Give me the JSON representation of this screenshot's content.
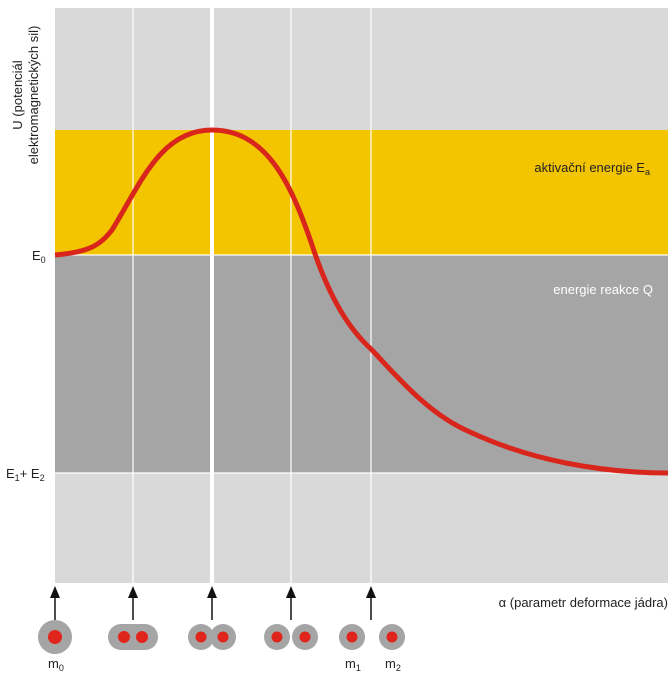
{
  "y_axis_label": [
    "U (potenciál",
    "elektromagnetických sil)"
  ],
  "x_axis_label": "α (parametr deformace jádra)",
  "level_e0": {
    "base": "E",
    "sub": "0"
  },
  "level_e1_e2": {
    "base1": "E",
    "sub1": "1",
    "base2": "+ E",
    "sub2": "2"
  },
  "band_activation": {
    "text": "aktivační energie E",
    "sub": "a"
  },
  "band_reaction": "energie reakce Q",
  "mass_labels": [
    {
      "base": "m",
      "sub": "0"
    },
    {
      "base": "m",
      "sub": "1"
    },
    {
      "base": "m",
      "sub": "2"
    }
  ]
}
